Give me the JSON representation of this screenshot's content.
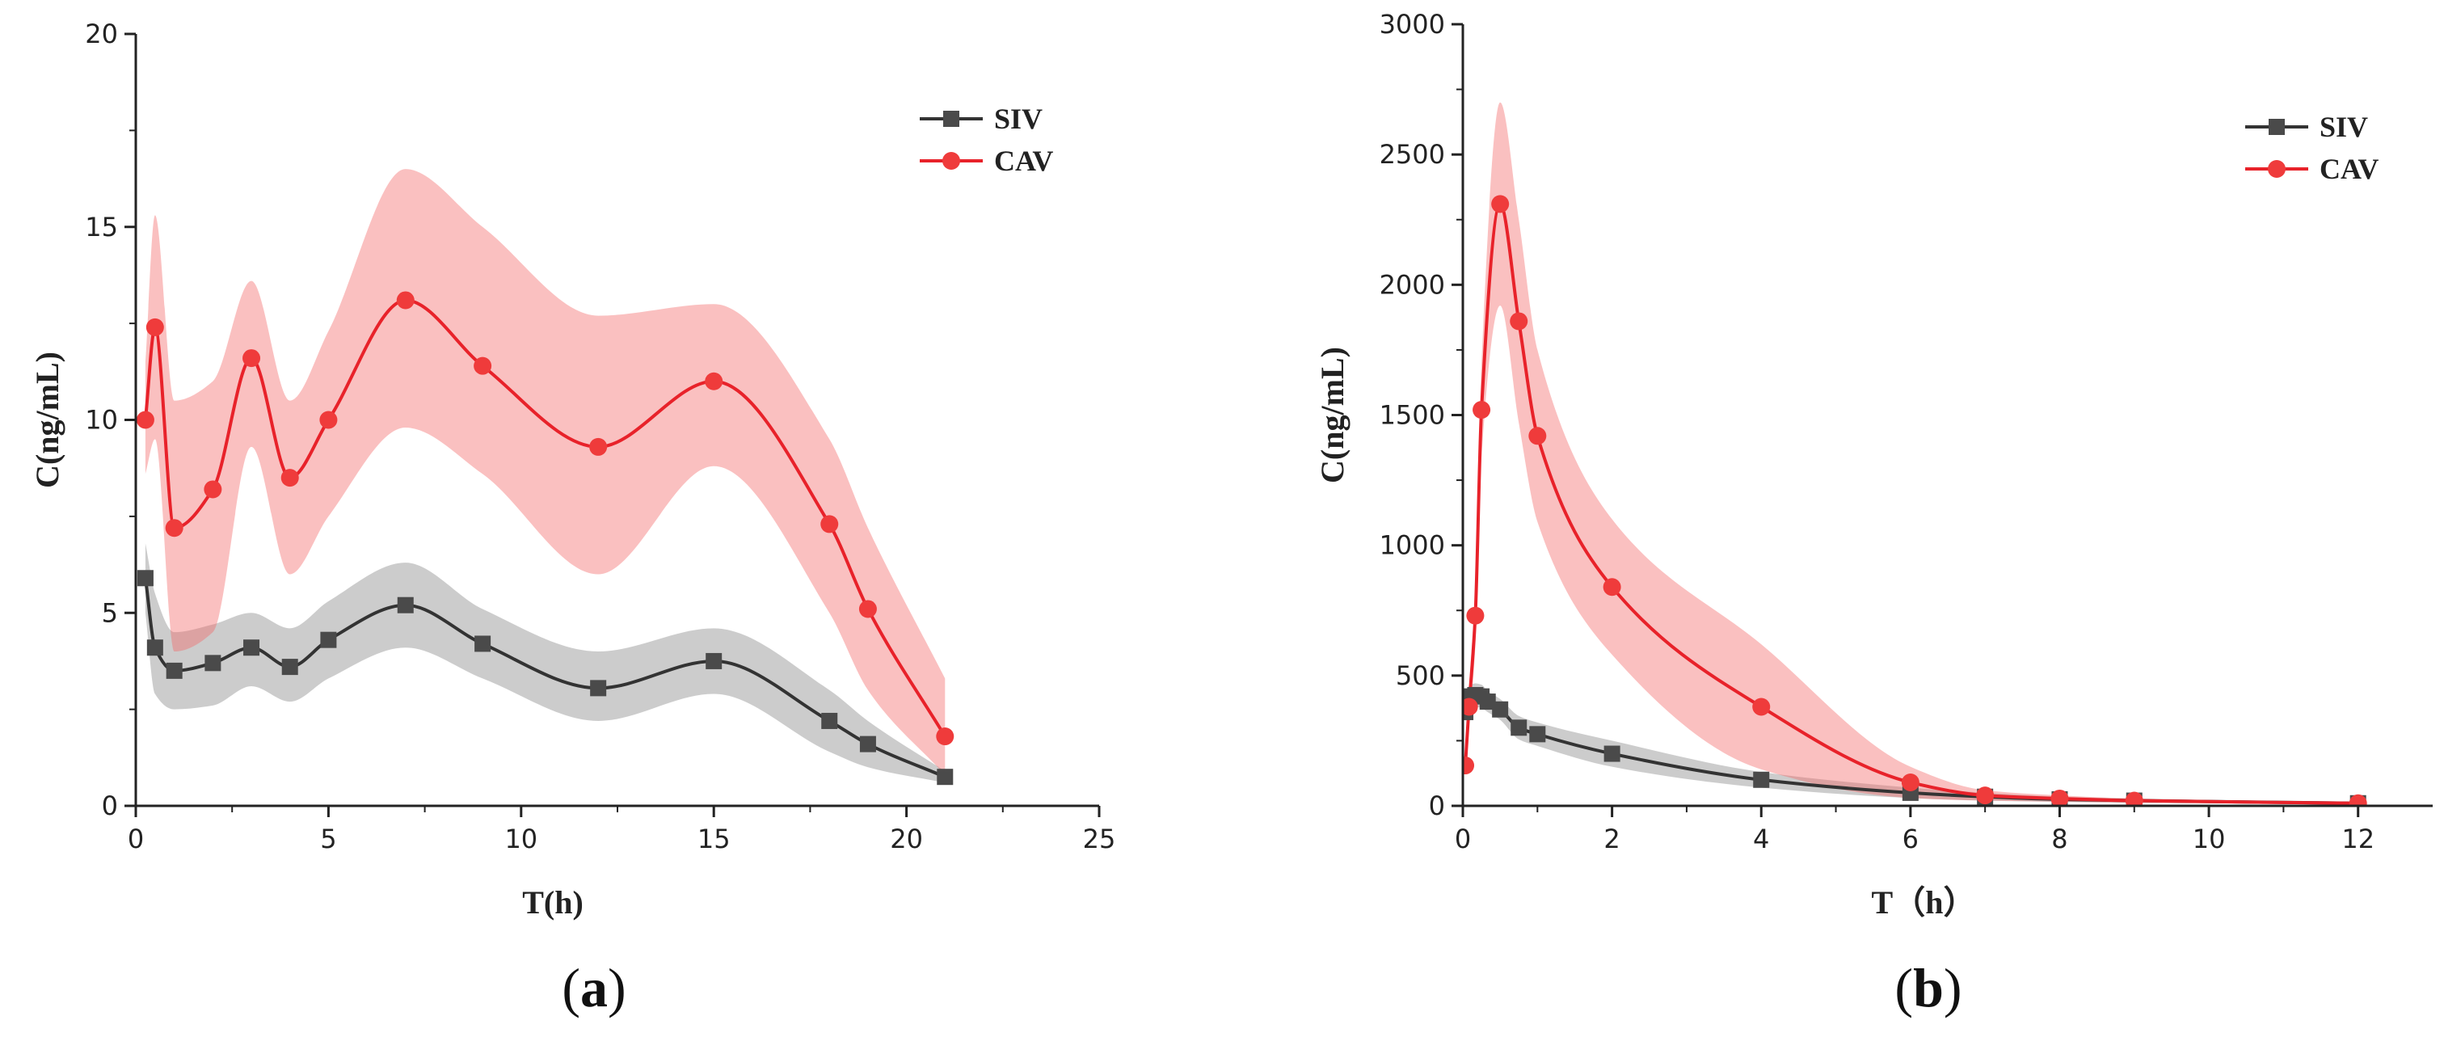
{
  "chart_data": [
    {
      "type": "line",
      "panel": "a",
      "caption": {
        "open": "(",
        "letter": "a",
        "close": ")"
      },
      "xlabel": "T(h)",
      "ylabel": "C(ng/mL)",
      "xlim": [
        0,
        25
      ],
      "ylim": [
        0,
        20
      ],
      "xticks": [
        0,
        5,
        10,
        15,
        20,
        25
      ],
      "yticks": [
        0,
        5,
        10,
        15,
        20
      ],
      "legend_position": "top-right",
      "series": [
        {
          "name": "SIV",
          "color": "#333333",
          "band_color": "#7a7a7a",
          "marker": "square",
          "x": [
            0.25,
            0.5,
            1,
            2,
            3,
            4,
            5,
            7,
            9,
            12,
            15,
            18,
            19,
            21
          ],
          "y": [
            5.9,
            4.1,
            3.5,
            3.7,
            4.1,
            3.6,
            4.3,
            5.2,
            4.2,
            3.05,
            3.75,
            2.2,
            1.6,
            0.75
          ],
          "upper": [
            6.8,
            5.5,
            4.5,
            4.7,
            5.0,
            4.6,
            5.3,
            6.3,
            5.1,
            4.0,
            4.6,
            3.0,
            2.2,
            0.9
          ],
          "lower": [
            5.0,
            2.9,
            2.5,
            2.6,
            3.1,
            2.7,
            3.3,
            4.1,
            3.3,
            2.2,
            2.9,
            1.4,
            1.0,
            0.6
          ]
        },
        {
          "name": "CAV",
          "color": "#e8222a",
          "band_color": "#f26a6a",
          "marker": "circle",
          "x": [
            0.25,
            0.5,
            1,
            2,
            3,
            4,
            5,
            7,
            9,
            12,
            15,
            18,
            19,
            21
          ],
          "y": [
            10.0,
            12.4,
            7.2,
            8.2,
            11.6,
            8.5,
            10.0,
            13.1,
            11.4,
            9.3,
            11.0,
            7.3,
            5.1,
            1.8
          ],
          "upper": [
            11.5,
            15.3,
            10.5,
            11.0,
            13.6,
            10.5,
            12.3,
            16.5,
            15.0,
            12.7,
            13.0,
            9.5,
            7.2,
            3.3
          ],
          "lower": [
            8.6,
            9.5,
            4.0,
            4.5,
            9.3,
            6.0,
            7.5,
            9.8,
            8.6,
            6.0,
            8.8,
            5.0,
            3.0,
            0.8
          ]
        }
      ]
    },
    {
      "type": "line",
      "panel": "b",
      "caption": {
        "open": "(",
        "letter": "b",
        "close": ")"
      },
      "xlabel": "T（h）",
      "ylabel": "C(ng/mL)",
      "xlim": [
        0,
        13
      ],
      "ylim": [
        0,
        3000
      ],
      "xticks": [
        0,
        2,
        4,
        6,
        8,
        10,
        12
      ],
      "yticks": [
        0,
        500,
        1000,
        1500,
        2000,
        2500,
        3000
      ],
      "legend_position": "top-right",
      "series": [
        {
          "name": "SIV",
          "color": "#333333",
          "band_color": "#7a7a7a",
          "marker": "square",
          "x": [
            0.033,
            0.083,
            0.167,
            0.25,
            0.333,
            0.5,
            0.75,
            1,
            2,
            4,
            6,
            7,
            8,
            9,
            12
          ],
          "y": [
            360,
            420,
            425,
            420,
            400,
            370,
            300,
            275,
            200,
            100,
            50,
            35,
            25,
            20,
            10
          ],
          "upper": [
            400,
            460,
            470,
            465,
            440,
            410,
            345,
            320,
            250,
            130,
            70,
            50,
            35,
            28,
            14
          ],
          "lower": [
            320,
            380,
            380,
            375,
            360,
            330,
            255,
            230,
            150,
            70,
            30,
            20,
            15,
            12,
            6
          ]
        },
        {
          "name": "CAV",
          "color": "#e8222a",
          "band_color": "#f26a6a",
          "marker": "circle",
          "x": [
            0.033,
            0.083,
            0.167,
            0.25,
            0.5,
            0.75,
            1,
            2,
            4,
            6,
            7,
            8,
            9,
            12
          ],
          "y": [
            155,
            380,
            730,
            1520,
            2310,
            1860,
            1420,
            840,
            380,
            90,
            40,
            28,
            20,
            10
          ],
          "upper": [
            200,
            450,
            850,
            1700,
            2700,
            2250,
            1750,
            1100,
            620,
            150,
            60,
            40,
            28,
            14
          ],
          "lower": [
            110,
            310,
            610,
            1340,
            1920,
            1470,
            1090,
            580,
            140,
            30,
            20,
            16,
            12,
            6
          ]
        }
      ]
    }
  ]
}
